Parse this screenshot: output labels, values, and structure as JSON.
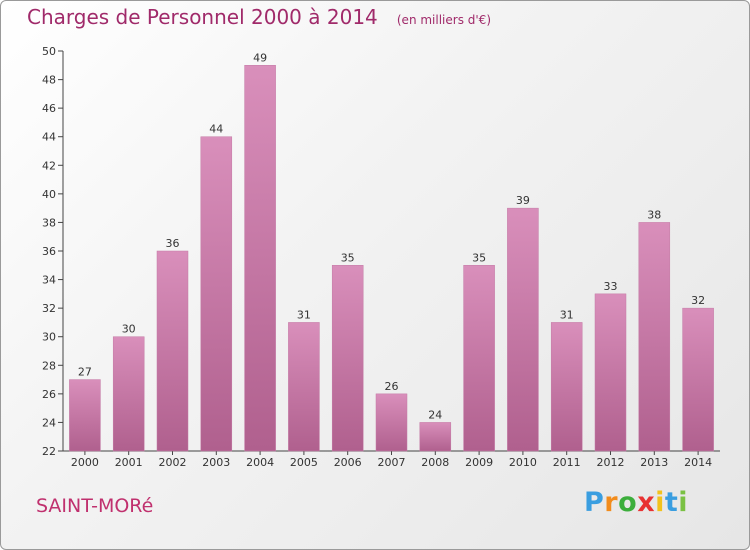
{
  "chart_data": {
    "type": "bar",
    "title": "Charges de Personnel 2000 à 2014",
    "subtitle": "(en milliers d'€)",
    "categories": [
      "2000",
      "2001",
      "2002",
      "2003",
      "2004",
      "2005",
      "2006",
      "2007",
      "2008",
      "2009",
      "2010",
      "2011",
      "2012",
      "2013",
      "2014"
    ],
    "values": [
      27,
      30,
      36,
      44,
      49,
      31,
      35,
      26,
      24,
      35,
      39,
      31,
      33,
      38,
      32
    ],
    "ylim": [
      22,
      50
    ],
    "yticks": [
      22,
      24,
      26,
      28,
      30,
      32,
      34,
      36,
      38,
      40,
      42,
      44,
      46,
      48,
      50
    ],
    "grid": false,
    "bar_color": "#d98fbb",
    "bar_color_dark": "#b0608e"
  },
  "commune": "SAINT-MORé",
  "logo": {
    "text": "Proxiti",
    "letter_colors": [
      "#3a9ee0",
      "#f28c1c",
      "#3cae3c",
      "#e83232",
      "#f2c21c",
      "#3a9ee0",
      "#7ac143"
    ]
  },
  "colors": {
    "title": "#a02a6a",
    "commune": "#c0306e"
  }
}
